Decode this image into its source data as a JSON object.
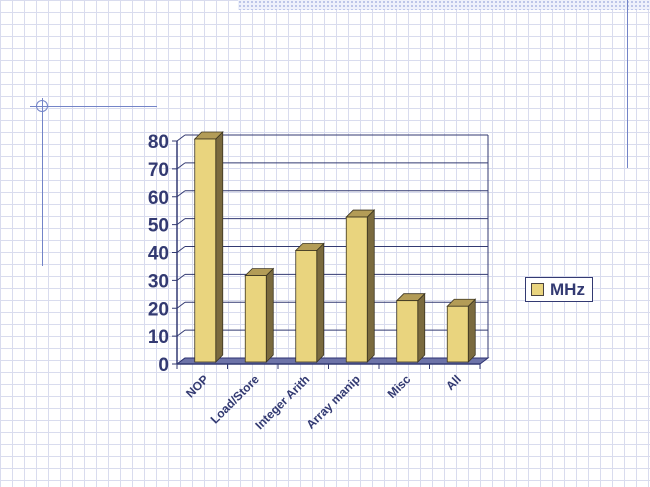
{
  "chart_data": {
    "type": "bar",
    "categories": [
      "NOP",
      "Load/Store",
      "Integer Arith",
      "Array manip",
      "Misc",
      "All"
    ],
    "series": [
      {
        "name": "MHz",
        "values": [
          80,
          31,
          40,
          52,
          22,
          20
        ]
      }
    ],
    "title": "",
    "xlabel": "",
    "ylabel": "",
    "ylim": [
      0,
      80
    ],
    "yticks": [
      0,
      10,
      20,
      30,
      40,
      50,
      60,
      70,
      80
    ],
    "grid": true,
    "legend": "right",
    "colors": {
      "bar_front": "#e9d47e",
      "bar_side": "#7a6a3e",
      "bar_top": "#b39c57",
      "text": "#333a72",
      "floor": "#6d73a8"
    }
  }
}
